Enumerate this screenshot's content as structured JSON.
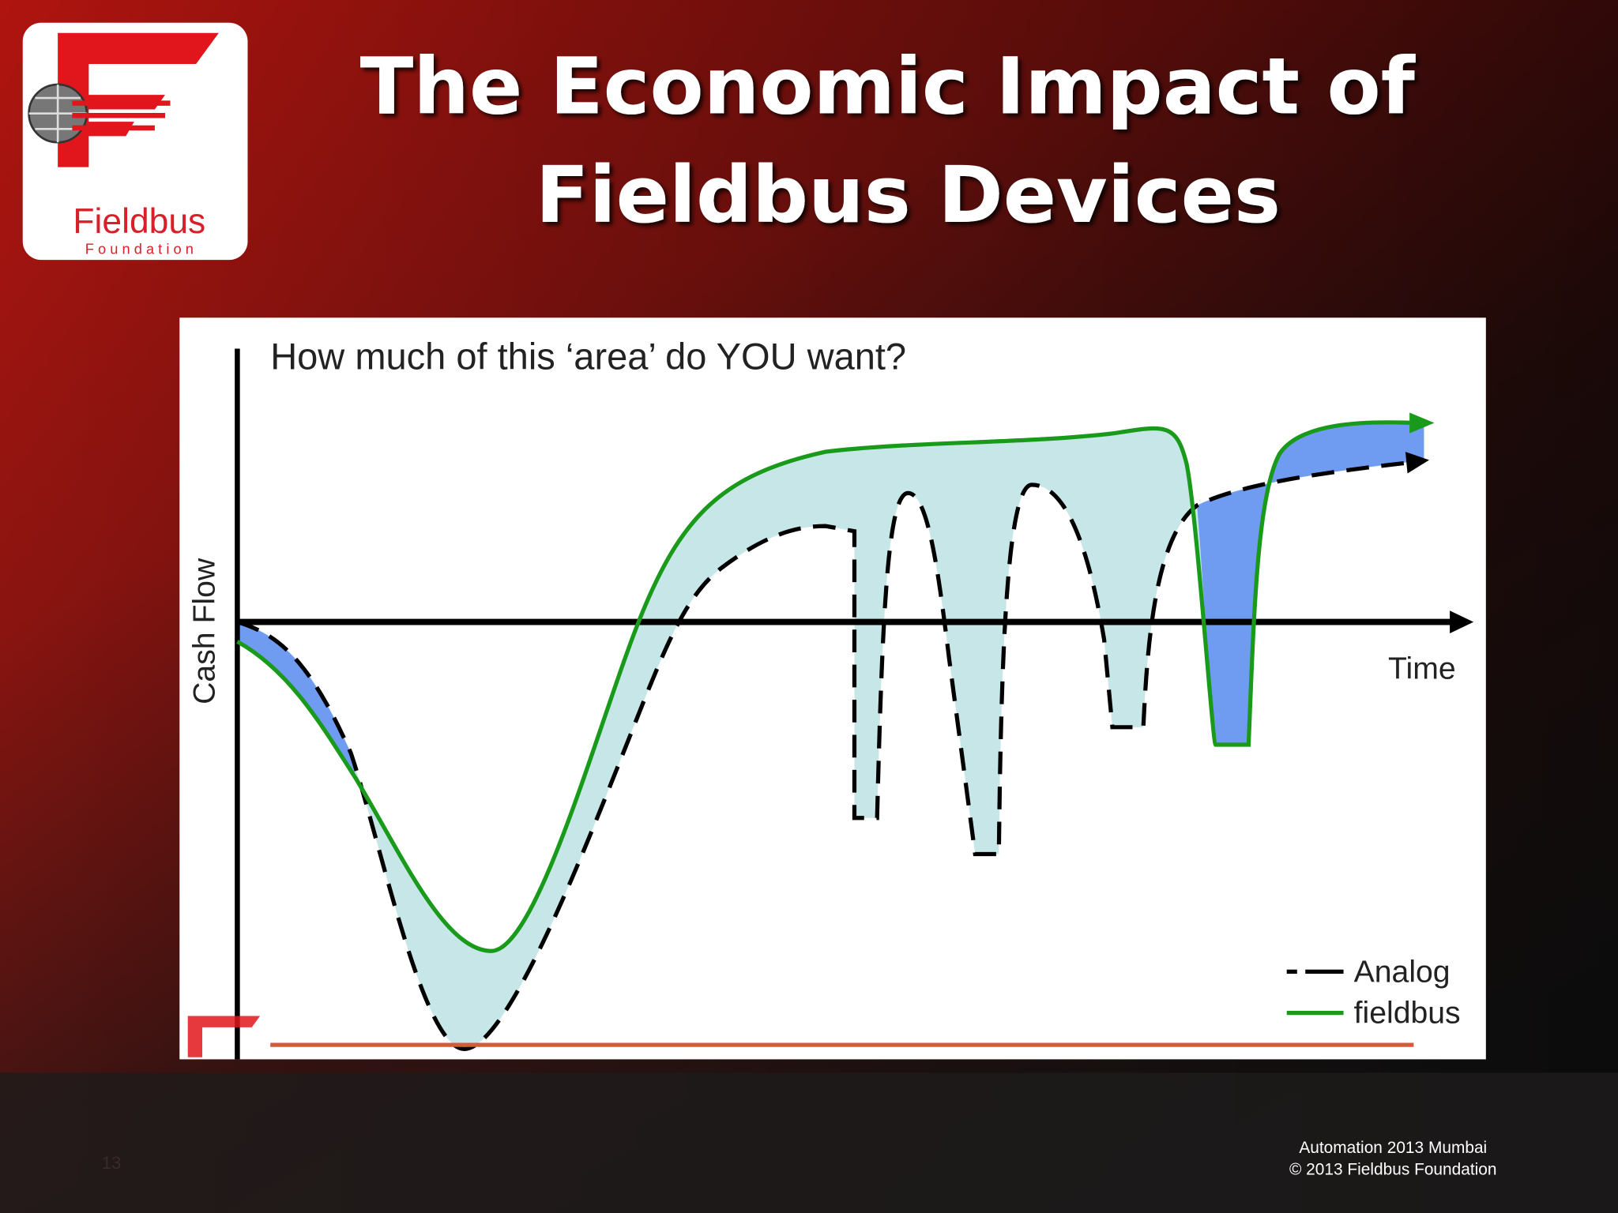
{
  "slide": {
    "title_lines": [
      "The Economic Impact of",
      "Fieldbus Devices"
    ],
    "logo": {
      "name": "Fieldbus",
      "tagline": "F o u n d a t i o n"
    },
    "diagram": {
      "question": "How much of this ‘area’ do YOU want?",
      "y_axis_label": "Cash Flow",
      "x_axis_label": "Time",
      "legend": [
        "Analog",
        "fieldbus"
      ]
    },
    "footer": {
      "page_number": "13",
      "event": "Automation 2013 Mumbai",
      "copyright": "© 2013 Fieldbus Foundation"
    }
  }
}
